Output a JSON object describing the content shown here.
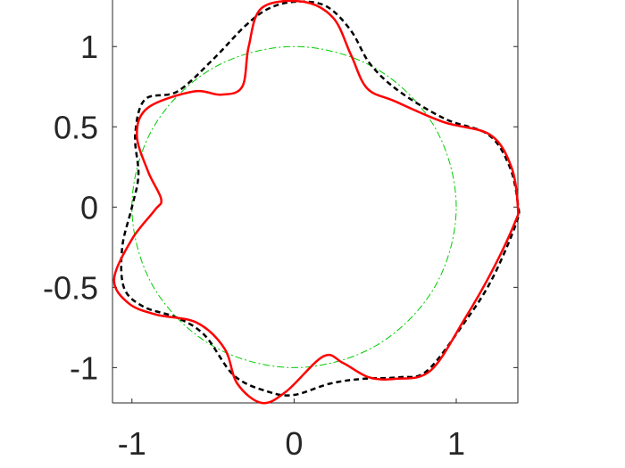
{
  "chart_data": {
    "type": "line",
    "title": "",
    "xlabel": "",
    "ylabel": "",
    "xlim": [
      -1.12,
      1.38
    ],
    "ylim": [
      -1.22,
      1.29
    ],
    "grid": false,
    "legend": "none",
    "xticks": [
      {
        "value": -1,
        "label": "-1"
      },
      {
        "value": 0,
        "label": "0"
      },
      {
        "value": 1,
        "label": "1"
      }
    ],
    "yticks": [
      {
        "value": 1,
        "label": "1"
      },
      {
        "value": 0.5,
        "label": "0.5"
      },
      {
        "value": 0,
        "label": "0"
      },
      {
        "value": -0.5,
        "label": "-0.5"
      },
      {
        "value": -1,
        "label": "-1"
      }
    ],
    "series": [
      {
        "style": "dash-dot",
        "color": "#00cc00",
        "closed": true,
        "x": [
          1,
          0.866,
          0.5,
          0,
          -0.5,
          -0.866,
          -1,
          -0.866,
          -0.5,
          0,
          0.5,
          0.866
        ],
        "y": [
          0,
          0.5,
          0.866,
          1,
          0.866,
          0.5,
          0,
          -0.5,
          -0.866,
          -1,
          -0.866,
          -0.5
        ]
      },
      {
        "style": "dashed",
        "color": "#000000",
        "closed": true,
        "x": [
          1.38,
          1.33,
          1.2,
          0.93,
          0.65,
          0.47,
          0.35,
          0.2,
          0.02,
          -0.15,
          -0.3,
          -0.5,
          -0.72,
          -0.92,
          -0.98,
          -0.96,
          -1.0,
          -1.06,
          -1.05,
          -0.93,
          -0.72,
          -0.55,
          -0.37,
          -0.16,
          0.0,
          0.22,
          0.42,
          0.65,
          0.82,
          1.05,
          1.22,
          1.37
        ],
        "y": [
          0.02,
          0.25,
          0.45,
          0.55,
          0.72,
          0.89,
          1.1,
          1.25,
          1.28,
          1.24,
          1.13,
          0.92,
          0.72,
          0.67,
          0.45,
          0.2,
          0.0,
          -0.25,
          -0.5,
          -0.62,
          -0.69,
          -0.8,
          -1.05,
          -1.15,
          -1.17,
          -1.1,
          -1.07,
          -1.06,
          -1.02,
          -0.72,
          -0.45,
          -0.1
        ]
      },
      {
        "style": "solid",
        "color": "#ff0000",
        "closed": true,
        "x": [
          1.38,
          1.34,
          1.21,
          0.92,
          0.62,
          0.45,
          0.35,
          0.24,
          0.05,
          -0.2,
          -0.28,
          -0.32,
          -0.45,
          -0.62,
          -0.9,
          -0.97,
          -0.9,
          -0.82,
          -0.86,
          -1.0,
          -1.11,
          -1.02,
          -0.85,
          -0.6,
          -0.43,
          -0.35,
          -0.2,
          -0.05,
          0.18,
          0.3,
          0.46,
          0.62,
          0.84,
          1.05,
          1.22,
          1.36
        ],
        "y": [
          0.0,
          0.25,
          0.45,
          0.53,
          0.66,
          0.74,
          0.95,
          1.18,
          1.28,
          1.24,
          1.0,
          0.75,
          0.7,
          0.72,
          0.62,
          0.45,
          0.22,
          0.05,
          -0.02,
          -0.2,
          -0.45,
          -0.6,
          -0.67,
          -0.72,
          -0.88,
          -1.1,
          -1.22,
          -1.15,
          -0.93,
          -0.97,
          -1.06,
          -1.07,
          -1.02,
          -0.7,
          -0.4,
          -0.1
        ]
      }
    ]
  }
}
